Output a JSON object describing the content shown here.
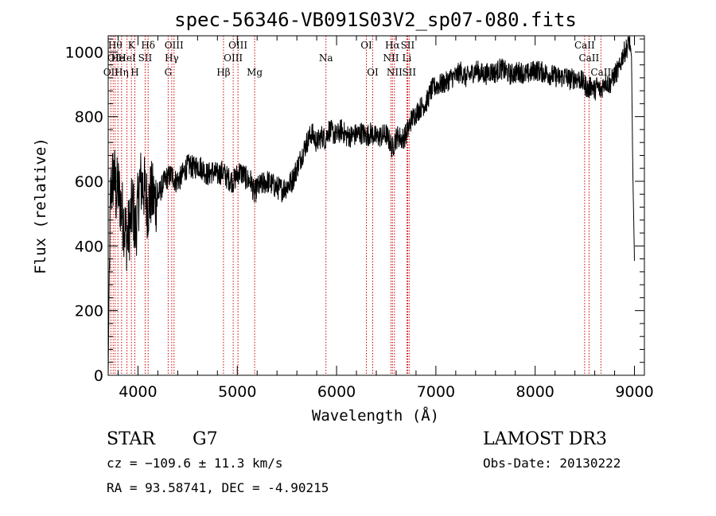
{
  "chart_data": {
    "type": "line",
    "title": "spec-56346-VB091S03V2_sp07-080.fits",
    "xlabel": "Wavelength (Å)",
    "ylabel": "Flux (relative)",
    "xlim": [
      3700,
      9100
    ],
    "ylim": [
      0,
      1050
    ],
    "xticks": [
      4000,
      5000,
      6000,
      7000,
      8000,
      9000
    ],
    "yticks": [
      0,
      200,
      400,
      600,
      800,
      1000
    ],
    "grid": false,
    "spectrum_anchors": [
      [
        3700,
        0
      ],
      [
        3712,
        350
      ],
      [
        3725,
        560
      ],
      [
        3740,
        600
      ],
      [
        3760,
        620
      ],
      [
        3780,
        560
      ],
      [
        3800,
        580
      ],
      [
        3830,
        520
      ],
      [
        3860,
        470
      ],
      [
        3890,
        420
      ],
      [
        3920,
        470
      ],
      [
        3950,
        530
      ],
      [
        3970,
        440
      ],
      [
        3990,
        490
      ],
      [
        4020,
        600
      ],
      [
        4060,
        580
      ],
      [
        4100,
        520
      ],
      [
        4130,
        560
      ],
      [
        4170,
        540
      ],
      [
        4210,
        560
      ],
      [
        4250,
        590
      ],
      [
        4290,
        610
      ],
      [
        4340,
        620
      ],
      [
        4380,
        600
      ],
      [
        4430,
        610
      ],
      [
        4480,
        640
      ],
      [
        4520,
        650
      ],
      [
        4560,
        640
      ],
      [
        4600,
        650
      ],
      [
        4650,
        640
      ],
      [
        4700,
        620
      ],
      [
        4750,
        630
      ],
      [
        4800,
        620
      ],
      [
        4850,
        630
      ],
      [
        4900,
        610
      ],
      [
        4960,
        600
      ],
      [
        5020,
        630
      ],
      [
        5060,
        620
      ],
      [
        5100,
        605
      ],
      [
        5140,
        600
      ],
      [
        5170,
        560
      ],
      [
        5200,
        580
      ],
      [
        5250,
        590
      ],
      [
        5300,
        600
      ],
      [
        5350,
        590
      ],
      [
        5400,
        580
      ],
      [
        5450,
        575
      ],
      [
        5500,
        585
      ],
      [
        5550,
        600
      ],
      [
        5600,
        640
      ],
      [
        5650,
        680
      ],
      [
        5700,
        720
      ],
      [
        5750,
        750
      ],
      [
        5800,
        720
      ],
      [
        5850,
        740
      ],
      [
        5890,
        730
      ],
      [
        5920,
        760
      ],
      [
        5960,
        750
      ],
      [
        6000,
        740
      ],
      [
        6050,
        760
      ],
      [
        6100,
        740
      ],
      [
        6150,
        740
      ],
      [
        6200,
        745
      ],
      [
        6250,
        750
      ],
      [
        6300,
        740
      ],
      [
        6350,
        750
      ],
      [
        6400,
        735
      ],
      [
        6450,
        740
      ],
      [
        6500,
        745
      ],
      [
        6540,
        720
      ],
      [
        6563,
        700
      ],
      [
        6590,
        730
      ],
      [
        6620,
        740
      ],
      [
        6660,
        730
      ],
      [
        6700,
        745
      ],
      [
        6720,
        760
      ],
      [
        6750,
        790
      ],
      [
        6800,
        810
      ],
      [
        6850,
        830
      ],
      [
        6900,
        840
      ],
      [
        6950,
        880
      ],
      [
        7000,
        895
      ],
      [
        7050,
        900
      ],
      [
        7100,
        905
      ],
      [
        7150,
        920
      ],
      [
        7200,
        925
      ],
      [
        7250,
        940
      ],
      [
        7300,
        920
      ],
      [
        7350,
        930
      ],
      [
        7400,
        945
      ],
      [
        7450,
        935
      ],
      [
        7500,
        930
      ],
      [
        7550,
        940
      ],
      [
        7600,
        935
      ],
      [
        7650,
        950
      ],
      [
        7700,
        940
      ],
      [
        7750,
        930
      ],
      [
        7800,
        935
      ],
      [
        7850,
        940
      ],
      [
        7900,
        930
      ],
      [
        7950,
        935
      ],
      [
        8000,
        945
      ],
      [
        8050,
        940
      ],
      [
        8100,
        935
      ],
      [
        8150,
        930
      ],
      [
        8200,
        925
      ],
      [
        8250,
        920
      ],
      [
        8300,
        925
      ],
      [
        8350,
        915
      ],
      [
        8400,
        920
      ],
      [
        8450,
        915
      ],
      [
        8500,
        900
      ],
      [
        8540,
        880
      ],
      [
        8560,
        900
      ],
      [
        8600,
        880
      ],
      [
        8620,
        895
      ],
      [
        8660,
        880
      ],
      [
        8700,
        910
      ],
      [
        8750,
        900
      ],
      [
        8800,
        930
      ],
      [
        8850,
        950
      ],
      [
        8880,
        990
      ],
      [
        8920,
        1010
      ],
      [
        8950,
        1040
      ],
      [
        8970,
        980
      ],
      [
        8985,
        600
      ],
      [
        9000,
        350
      ]
    ],
    "line_markers": [
      {
        "wavelength": 3727,
        "label": "OII",
        "row": 3
      },
      {
        "wavelength": 3750,
        "label": "OI",
        "row": 2
      },
      {
        "wavelength": 3770,
        "label": "Hθ",
        "row": 1
      },
      {
        "wavelength": 3798,
        "label": "He",
        "row": 2
      },
      {
        "wavelength": 3835,
        "label": "Hη",
        "row": 3
      },
      {
        "wavelength": 3889,
        "label": "HeI",
        "row": 2
      },
      {
        "wavelength": 3934,
        "label": "K",
        "row": 1
      },
      {
        "wavelength": 3968,
        "label": "H",
        "row": 3
      },
      {
        "wavelength": 4072,
        "label": "SII",
        "row": 2
      },
      {
        "wavelength": 4102,
        "label": "Hδ",
        "row": 1
      },
      {
        "wavelength": 4304,
        "label": "G",
        "row": 3
      },
      {
        "wavelength": 4340,
        "label": "Hγ",
        "row": 2
      },
      {
        "wavelength": 4363,
        "label": "OIII",
        "row": 1
      },
      {
        "wavelength": 4861,
        "label": "Hβ",
        "row": 3
      },
      {
        "wavelength": 4959,
        "label": "OIII",
        "row": 2
      },
      {
        "wavelength": 5007,
        "label": "OIII",
        "row": 1
      },
      {
        "wavelength": 5175,
        "label": "Mg",
        "row": 3
      },
      {
        "wavelength": 5893,
        "label": "Na",
        "row": 2
      },
      {
        "wavelength": 6300,
        "label": "OI",
        "row": 1
      },
      {
        "wavelength": 6364,
        "label": "OI",
        "row": 3
      },
      {
        "wavelength": 6548,
        "label": "NII",
        "row": 2
      },
      {
        "wavelength": 6563,
        "label": "Hα",
        "row": 1
      },
      {
        "wavelength": 6583,
        "label": "NII",
        "row": 3
      },
      {
        "wavelength": 6708,
        "label": "Li",
        "row": 2
      },
      {
        "wavelength": 6716,
        "label": "SII",
        "row": 1
      },
      {
        "wavelength": 6731,
        "label": "SII",
        "row": 3
      },
      {
        "wavelength": 8498,
        "label": "CaII",
        "row": 1
      },
      {
        "wavelength": 8542,
        "label": "CaII",
        "row": 2
      },
      {
        "wavelength": 8662,
        "label": "CaII",
        "row": 3
      }
    ]
  },
  "info": {
    "class_label": "STAR",
    "subclass": "G7",
    "survey": "LAMOST DR3",
    "velocity": "cz = −109.6 ± 11.3 km/s",
    "obs_date": "Obs-Date: 20130222",
    "coords": "RA =  93.58741, DEC =  -4.90215"
  },
  "colors": {
    "spectrum": "#000000",
    "marker": "#cc0000",
    "axis": "#000000"
  }
}
